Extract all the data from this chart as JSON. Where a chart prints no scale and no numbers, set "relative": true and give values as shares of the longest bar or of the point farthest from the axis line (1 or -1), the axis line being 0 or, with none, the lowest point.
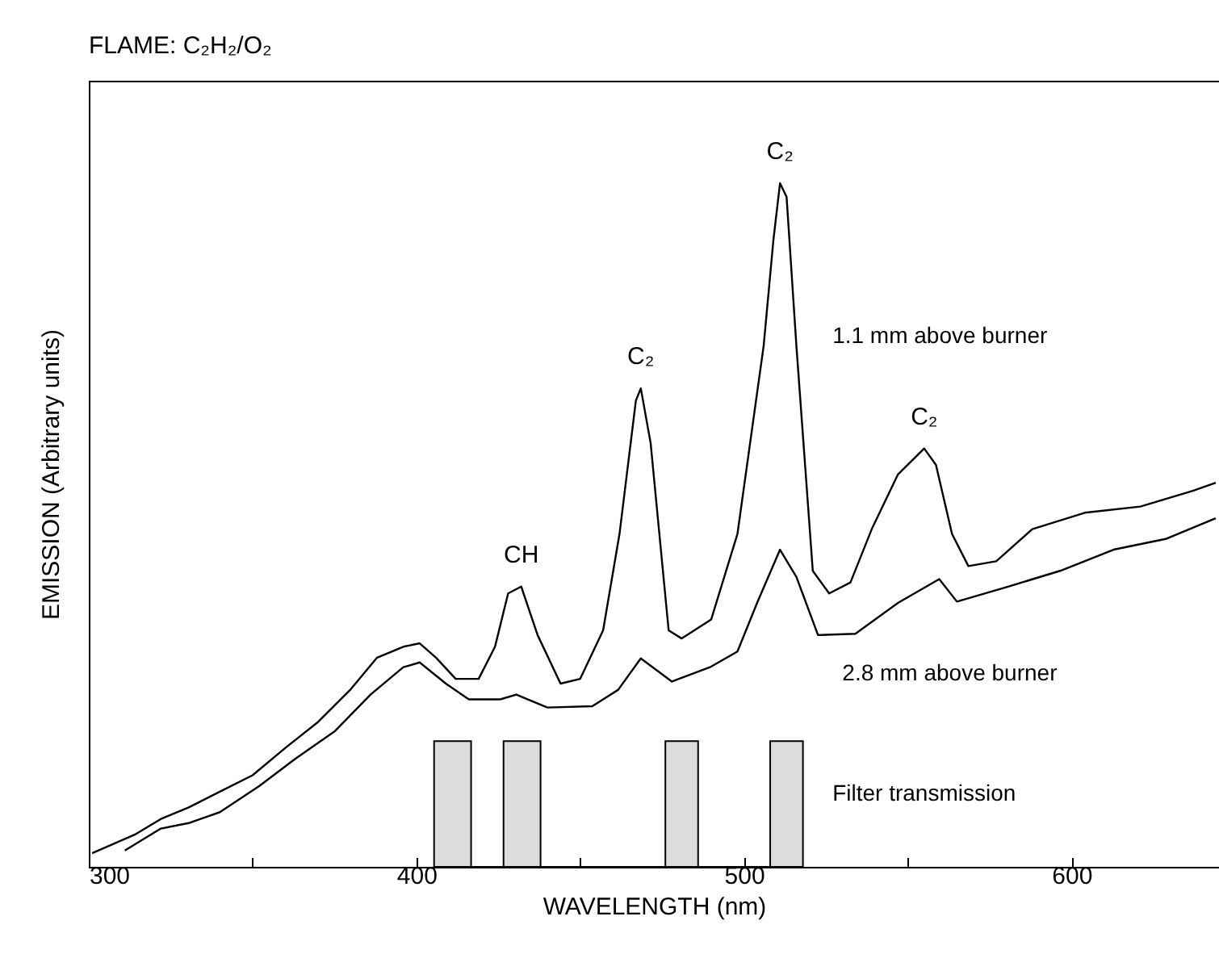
{
  "chart_data": {
    "type": "line",
    "title": "FLAME: C₂H₂/O₂",
    "xlabel": "WAVELENGTH (nm)",
    "ylabel": "EMISSION (Arbitrary units)",
    "relative": true,
    "xlim": [
      300,
      645
    ],
    "xticks": [
      300,
      {
        "value": 350,
        "label": null
      },
      400,
      {
        "value": 450,
        "label": null
      },
      500,
      {
        "value": 550,
        "label": null
      },
      600
    ],
    "series": [
      {
        "name": "1.1 mm above burner",
        "color": "#000000",
        "x": [
          301,
          314,
          322,
          330.5,
          340,
          350,
          360,
          370,
          380,
          388,
          396,
          401,
          406,
          412,
          419,
          424,
          428,
          432,
          437,
          444,
          450,
          457,
          462,
          467,
          468.5,
          471.5,
          477,
          481,
          490,
          498,
          506,
          509,
          511,
          513,
          516,
          521,
          526,
          532.5,
          539,
          547,
          555,
          558.6,
          563.5,
          568.5,
          577,
          588,
          604,
          621,
          637,
          644
        ],
        "values": [
          0.02,
          0.047,
          0.07,
          0.087,
          0.11,
          0.134,
          0.174,
          0.212,
          0.26,
          0.306,
          0.322,
          0.327,
          0.306,
          0.275,
          0.275,
          0.322,
          0.4,
          0.41,
          0.339,
          0.268,
          0.275,
          0.346,
          0.487,
          0.682,
          0.7,
          0.62,
          0.346,
          0.334,
          0.362,
          0.487,
          0.762,
          0.918,
          1,
          0.98,
          0.762,
          0.433,
          0.4,
          0.416,
          0.494,
          0.574,
          0.612,
          0.588,
          0.487,
          0.44,
          0.447,
          0.494,
          0.518,
          0.527,
          0.55,
          0.562
        ]
      },
      {
        "name": "2.8 mm above burner",
        "color": "#000000",
        "x": [
          311,
          322,
          330.5,
          340,
          352,
          363,
          375,
          386,
          396,
          401,
          409,
          416,
          425.6,
          430.5,
          440,
          453.7,
          461.6,
          468.5,
          478,
          489.6,
          498,
          504,
          511,
          516,
          522.6,
          534,
          547,
          559.6,
          565,
          580,
          596.5,
          612.8,
          629,
          644
        ],
        "values": [
          0.024,
          0.056,
          0.064,
          0.08,
          0.118,
          0.158,
          0.198,
          0.252,
          0.292,
          0.299,
          0.268,
          0.245,
          0.245,
          0.252,
          0.233,
          0.235,
          0.259,
          0.305,
          0.271,
          0.292,
          0.315,
          0.386,
          0.464,
          0.424,
          0.339,
          0.341,
          0.386,
          0.421,
          0.388,
          0.409,
          0.433,
          0.464,
          0.48,
          0.51
        ]
      },
      {
        "name": "Filter transmission",
        "color": "#dcdcdc",
        "type": "area",
        "x": [
          405.4,
          405.4,
          416.7,
          416.7,
          426.6,
          426.6,
          437.9,
          437.9,
          476,
          476,
          486,
          486,
          508,
          508,
          518,
          518
        ],
        "values": [
          0,
          0.184,
          0.184,
          0,
          0,
          0.184,
          0.184,
          0,
          0,
          0.184,
          0.184,
          0,
          0,
          0.184,
          0.184,
          0
        ]
      }
    ],
    "annotations": [
      {
        "text": "CH",
        "x": 432,
        "y": 0.41
      },
      {
        "text": "C₂",
        "x": 468.5,
        "y": 0.7
      },
      {
        "text": "C₂",
        "x": 511,
        "y": 1
      },
      {
        "text": "C₂",
        "x": 555,
        "y": 0.612
      }
    ]
  }
}
